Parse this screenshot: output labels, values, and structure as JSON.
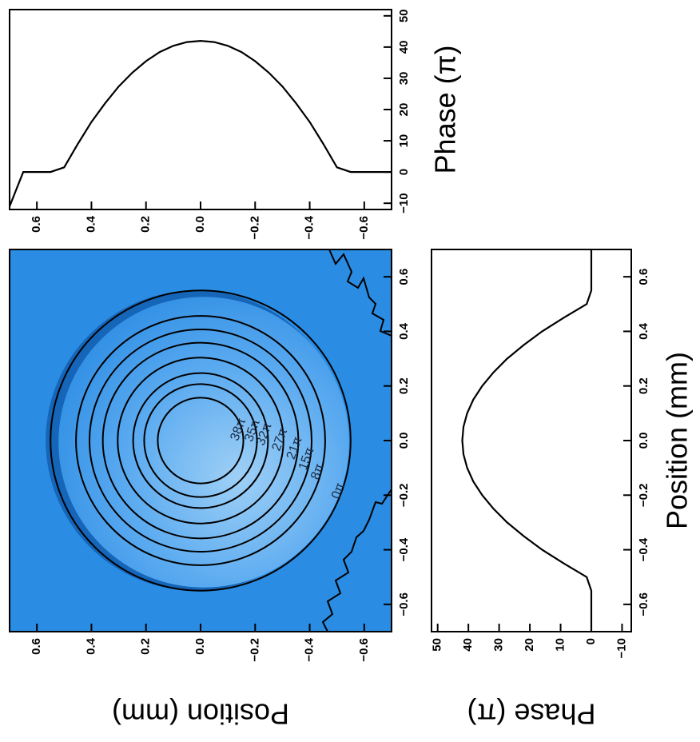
{
  "chart_data": [
    {
      "type": "contour",
      "xlabel": "Position (mm)",
      "xlim": [
        0.7,
        -0.7
      ],
      "ylim": [
        0.7,
        -0.7
      ],
      "xticks": [
        0.6,
        0.4,
        0.2,
        {
          "value": 0,
          "label": "0.0"
        },
        {
          "value": -0.2,
          "label": "−0.2"
        },
        {
          "value": -0.4,
          "label": "−0.4"
        },
        {
          "value": -0.6,
          "label": "−0.6"
        }
      ],
      "yticks": [
        0.6,
        0.4,
        0.2,
        {
          "value": 0,
          "label": "0.0"
        },
        {
          "value": -0.2,
          "label": "−0.2"
        },
        {
          "value": -0.4,
          "label": "−0.4"
        },
        {
          "value": -0.6,
          "label": "−0.6"
        }
      ],
      "levels": [
        0,
        8,
        15,
        21,
        27,
        32,
        35,
        38
      ],
      "level_labels": [
        "0π",
        "8π",
        "15π",
        "21π",
        "27π",
        "32π",
        "35π",
        "38π"
      ],
      "color": "#2a8ce2",
      "line_color": "#000000"
    },
    {
      "type": "line",
      "ylabel": "Phase (π)",
      "x": [
        -0.7,
        -0.65,
        -0.6,
        -0.55,
        -0.5,
        -0.45,
        -0.4,
        -0.35,
        -0.3,
        -0.25,
        -0.2,
        -0.15,
        -0.1,
        -0.05,
        0,
        0.05,
        0.1,
        0.15,
        0.2,
        0.25,
        0.3,
        0.35,
        0.4,
        0.45,
        0.5,
        0.55,
        0.6,
        0.65,
        0.7
      ],
      "values": [
        0,
        0,
        0,
        0,
        1.5,
        9,
        16,
        22,
        27.4,
        31.8,
        35.5,
        38.4,
        40.4,
        41.6,
        42,
        41.6,
        40.4,
        38.4,
        35.5,
        31.8,
        27.4,
        22,
        16,
        9,
        1.5,
        0,
        0,
        0,
        -11
      ],
      "xlim": [
        0.7,
        -0.7
      ],
      "ylim": [
        -12,
        52
      ],
      "xticks": [
        0.6,
        0.4,
        0.2,
        {
          "value": 0,
          "label": "0.0"
        },
        {
          "value": -0.2,
          "label": "−0.2"
        },
        {
          "value": -0.4,
          "label": "−0.4"
        },
        {
          "value": -0.6,
          "label": "−0.6"
        }
      ],
      "yticks": [
        50,
        40,
        30,
        20,
        10,
        0,
        {
          "value": -10,
          "label": "−10"
        }
      ],
      "color": "#000000"
    },
    {
      "type": "line",
      "orientation": "vertical",
      "xlabel": "Phase (π)",
      "ylabel": "Position (mm)",
      "x": [
        -0.7,
        -0.65,
        -0.6,
        -0.55,
        -0.5,
        -0.45,
        -0.4,
        -0.35,
        -0.3,
        -0.25,
        -0.2,
        -0.15,
        -0.1,
        -0.05,
        0,
        0.05,
        0.1,
        0.15,
        0.2,
        0.25,
        0.3,
        0.35,
        0.4,
        0.45,
        0.5,
        0.55,
        0.6,
        0.65,
        0.7
      ],
      "values": [
        0,
        0,
        0,
        0,
        1.5,
        9,
        16,
        22,
        27.4,
        31.8,
        35.5,
        38.4,
        40.4,
        41.6,
        42,
        41.6,
        40.4,
        38.4,
        35.5,
        31.8,
        27.4,
        22,
        16,
        9,
        1.5,
        0,
        0,
        0,
        0
      ],
      "xlim": [
        0.7,
        -0.7
      ],
      "ylim": [
        -13,
        52
      ],
      "xticks": [
        0.6,
        0.4,
        0.2,
        {
          "value": 0,
          "label": "0.0"
        },
        {
          "value": -0.2,
          "label": "−0.2"
        },
        {
          "value": -0.4,
          "label": "−0.4"
        },
        {
          "value": -0.6,
          "label": "−0.6"
        }
      ],
      "yticks": [
        50,
        40,
        30,
        20,
        10,
        0,
        {
          "value": -10,
          "label": "−10"
        }
      ],
      "color": "#000000"
    }
  ]
}
